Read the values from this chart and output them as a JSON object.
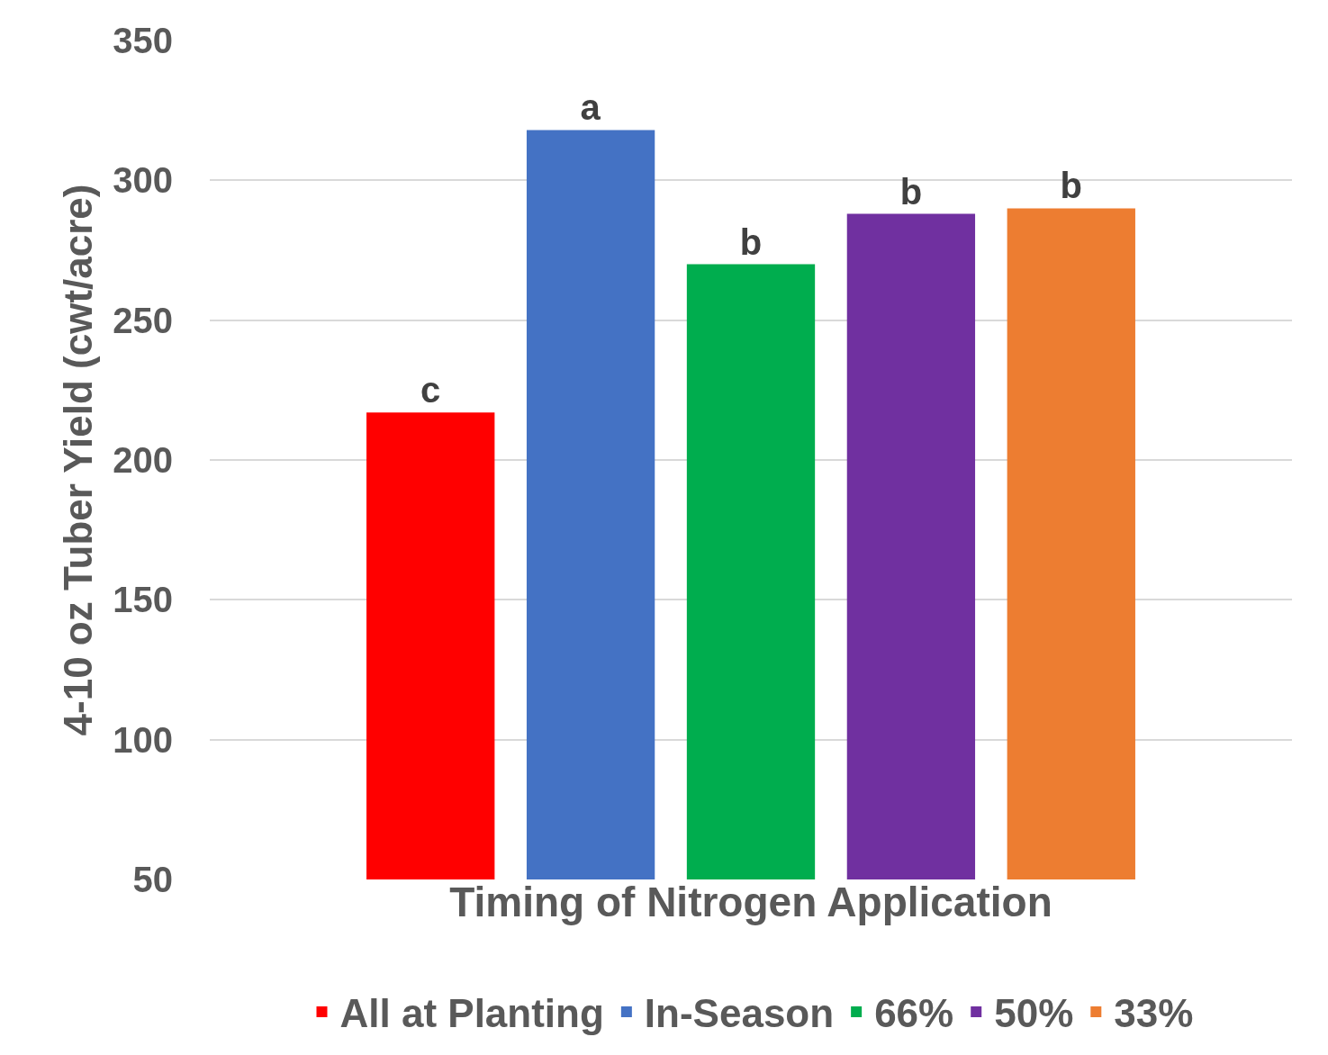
{
  "chart_data": {
    "type": "bar",
    "xlabel": "Timing of Nitrogen Application",
    "ylabel": "4-10 oz Tuber Yield (cwt/acre)",
    "categories": [
      null
    ],
    "series": [
      {
        "name": "All at Planting",
        "color": "#ff0000",
        "values": [
          217
        ],
        "value_labels": [
          "c"
        ]
      },
      {
        "name": "In-Season",
        "color": "#4472c4",
        "values": [
          318
        ],
        "value_labels": [
          "a"
        ]
      },
      {
        "name": "66%",
        "color": "#00ad4e",
        "values": [
          270
        ],
        "value_labels": [
          "b"
        ]
      },
      {
        "name": "50%",
        "color": "#7030a0",
        "values": [
          288
        ],
        "value_labels": [
          "b"
        ]
      },
      {
        "name": "33%",
        "color": "#ed7d31",
        "values": [
          290
        ],
        "value_labels": [
          "b"
        ]
      }
    ],
    "ylim": [
      50,
      350
    ],
    "yticks": [
      50,
      100,
      150,
      200,
      250,
      300,
      350
    ],
    "grid": "y",
    "legend": "bottom"
  }
}
